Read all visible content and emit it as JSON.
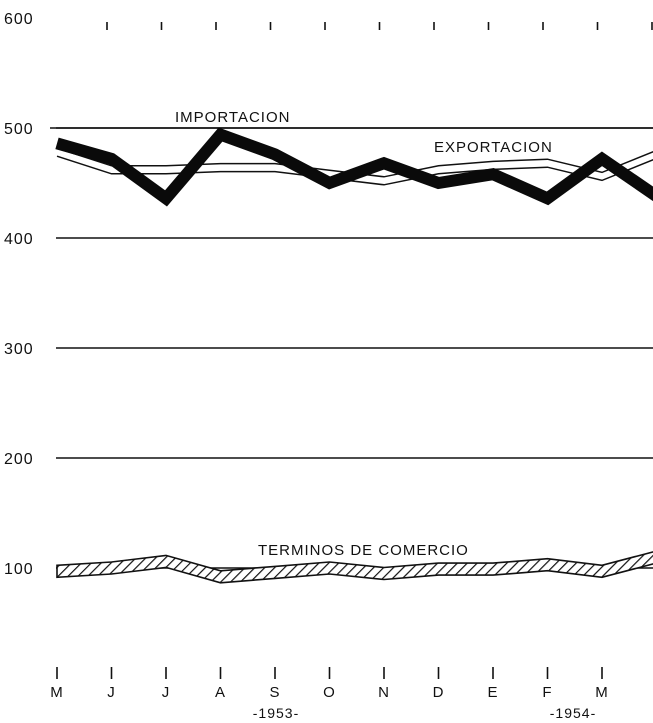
{
  "chart_data": {
    "type": "line",
    "title": "",
    "xlabel": "",
    "ylabel": "",
    "ylim": [
      0,
      600
    ],
    "y_ticks": [
      "600",
      "500",
      "400",
      "300",
      "200",
      "100"
    ],
    "categories": [
      "M",
      "J",
      "J",
      "A",
      "S",
      "O",
      "N",
      "D",
      "E",
      "F",
      "M",
      ""
    ],
    "years": [
      "-1953-",
      "-1954-"
    ],
    "grid": true,
    "series": [
      {
        "name": "IMPORTACION",
        "style": "thick-black",
        "values": [
          486,
          472,
          436,
          494,
          476,
          450,
          468,
          450,
          458,
          436,
          472,
          438
        ]
      },
      {
        "name": "EXPORTACION",
        "style": "thin-double",
        "values": [
          478,
          462,
          462,
          464,
          464,
          458,
          452,
          462,
          466,
          468,
          456,
          476
        ]
      },
      {
        "name": "TERMINOS DE COMERCIO",
        "style": "hatched-band",
        "values": [
          97,
          100,
          106,
          92,
          96,
          100,
          95,
          99,
          99,
          103,
          97,
          110
        ]
      }
    ]
  }
}
